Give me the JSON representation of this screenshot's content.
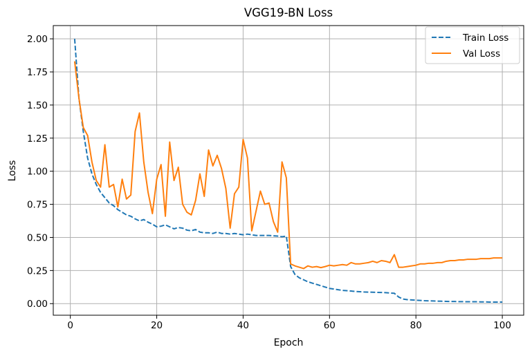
{
  "chart_data": {
    "type": "line",
    "title": "VGG19-BN Loss",
    "xlabel": "Epoch",
    "ylabel": "Loss",
    "xlim": [
      -3.95,
      104.95
    ],
    "ylim": [
      -0.0875,
      2.1
    ],
    "xticks": [
      0,
      20,
      40,
      60,
      80,
      100
    ],
    "xtick_labels": [
      "0",
      "20",
      "40",
      "60",
      "80",
      "100"
    ],
    "yticks": [
      0.0,
      0.25,
      0.5,
      0.75,
      1.0,
      1.25,
      1.5,
      1.75,
      2.0
    ],
    "ytick_labels": [
      "0.00",
      "0.25",
      "0.50",
      "0.75",
      "1.00",
      "1.25",
      "1.50",
      "1.75",
      "2.00"
    ],
    "grid": true,
    "legend_position": "top-right",
    "x": [
      1,
      2,
      3,
      4,
      5,
      6,
      7,
      8,
      9,
      10,
      11,
      12,
      13,
      14,
      15,
      16,
      17,
      18,
      19,
      20,
      21,
      22,
      23,
      24,
      25,
      26,
      27,
      28,
      29,
      30,
      31,
      32,
      33,
      34,
      35,
      36,
      37,
      38,
      39,
      40,
      41,
      42,
      43,
      44,
      45,
      46,
      47,
      48,
      49,
      50,
      51,
      52,
      53,
      54,
      55,
      56,
      57,
      58,
      59,
      60,
      61,
      62,
      63,
      64,
      65,
      66,
      67,
      68,
      69,
      70,
      71,
      72,
      73,
      74,
      75,
      76,
      77,
      78,
      79,
      80,
      81,
      82,
      83,
      84,
      85,
      86,
      87,
      88,
      89,
      90,
      91,
      92,
      93,
      94,
      95,
      96,
      97,
      98,
      99,
      100
    ],
    "series": [
      {
        "name": "Train Loss",
        "style": "dashed",
        "color": "#1f77b4",
        "values": [
          2.0,
          1.55,
          1.3,
          1.1,
          0.98,
          0.9,
          0.84,
          0.8,
          0.76,
          0.74,
          0.71,
          0.69,
          0.67,
          0.66,
          0.64,
          0.625,
          0.635,
          0.615,
          0.6,
          0.58,
          0.585,
          0.595,
          0.58,
          0.565,
          0.575,
          0.57,
          0.555,
          0.55,
          0.56,
          0.54,
          0.535,
          0.535,
          0.53,
          0.54,
          0.53,
          0.53,
          0.525,
          0.53,
          0.525,
          0.52,
          0.525,
          0.52,
          0.515,
          0.515,
          0.515,
          0.515,
          0.512,
          0.51,
          0.505,
          0.51,
          0.28,
          0.22,
          0.195,
          0.18,
          0.165,
          0.155,
          0.145,
          0.135,
          0.125,
          0.115,
          0.11,
          0.105,
          0.1,
          0.098,
          0.095,
          0.092,
          0.09,
          0.088,
          0.087,
          0.086,
          0.085,
          0.084,
          0.083,
          0.08,
          0.078,
          0.05,
          0.035,
          0.03,
          0.028,
          0.026,
          0.024,
          0.022,
          0.021,
          0.02,
          0.019,
          0.018,
          0.017,
          0.016,
          0.016,
          0.015,
          0.015,
          0.014,
          0.014,
          0.014,
          0.013,
          0.013,
          0.012,
          0.012,
          0.012,
          0.012
        ]
      },
      {
        "name": "Val Loss",
        "style": "solid",
        "color": "#ff7f0e",
        "values": [
          1.83,
          1.55,
          1.33,
          1.27,
          1.07,
          0.93,
          0.88,
          1.2,
          0.88,
          0.9,
          0.73,
          0.94,
          0.79,
          0.82,
          1.3,
          1.44,
          1.07,
          0.84,
          0.68,
          0.94,
          1.05,
          0.66,
          1.22,
          0.93,
          1.03,
          0.75,
          0.69,
          0.67,
          0.78,
          0.98,
          0.81,
          1.16,
          1.04,
          1.12,
          1.02,
          0.87,
          0.57,
          0.83,
          0.88,
          1.24,
          1.1,
          0.55,
          0.7,
          0.85,
          0.75,
          0.76,
          0.62,
          0.54,
          1.07,
          0.95,
          0.3,
          0.285,
          0.275,
          0.265,
          0.285,
          0.275,
          0.28,
          0.272,
          0.28,
          0.29,
          0.285,
          0.29,
          0.295,
          0.29,
          0.31,
          0.3,
          0.3,
          0.305,
          0.31,
          0.32,
          0.31,
          0.325,
          0.32,
          0.31,
          0.37,
          0.275,
          0.275,
          0.28,
          0.285,
          0.29,
          0.3,
          0.3,
          0.305,
          0.305,
          0.31,
          0.31,
          0.32,
          0.325,
          0.325,
          0.33,
          0.33,
          0.335,
          0.335,
          0.335,
          0.34,
          0.34,
          0.34,
          0.345,
          0.345,
          0.345
        ]
      }
    ]
  }
}
